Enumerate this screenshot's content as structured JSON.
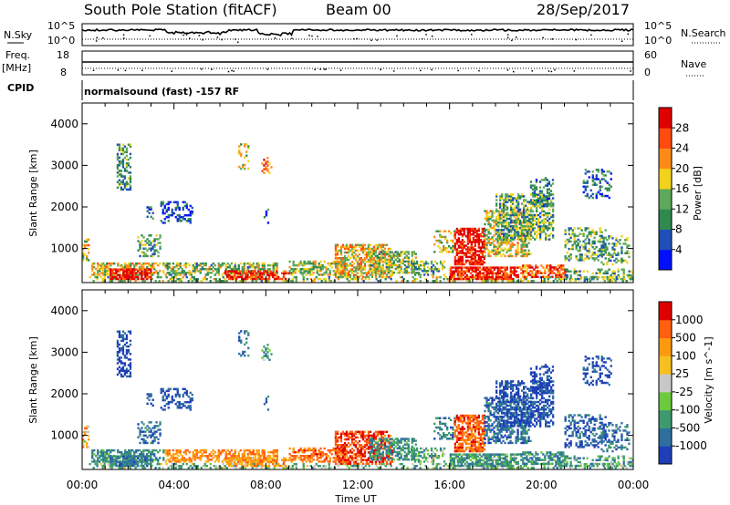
{
  "header": {
    "station": "South Pole Station (fitACF)",
    "beam": "Beam 00",
    "date": "28/Sep/2017"
  },
  "strip_panels": {
    "nsky_label": "N.Sky",
    "nsky_ticks": [
      "10^5",
      "10^0"
    ],
    "nsearch_label": "N.Search",
    "nsearch_ticks": [
      "10^5",
      "10^0"
    ],
    "freq_label": "Freq.",
    "freq_unit": "[MHz]",
    "freq_ticks": [
      "18",
      "8"
    ],
    "nave_label": "Nave",
    "nave_ticks": [
      "60",
      "0"
    ],
    "cpid_label": "CPID",
    "cpid_text": "normalsound (fast) -157 RF"
  },
  "chart_data": [
    {
      "type": "heatmap",
      "name": "power",
      "ylabel": "Slant Range [km]",
      "xlabel": "Time UT",
      "x_ticks": [
        "00:00",
        "04:00",
        "08:00",
        "12:00",
        "16:00",
        "20:00",
        "00:00"
      ],
      "x_range_hours": [
        0,
        24
      ],
      "y_ticks": [
        1000,
        2000,
        3000,
        4000
      ],
      "ylim": [
        180,
        4500
      ],
      "colorbar": {
        "label": "Power [dB]",
        "ticks": [
          4,
          8,
          12,
          16,
          20,
          24,
          28
        ],
        "range": [
          0,
          32
        ],
        "colors": [
          "#0010ff",
          "#1f4fb8",
          "#2e8a4e",
          "#5ea85a",
          "#f2d21a",
          "#ff8a1a",
          "#ff4a10",
          "#e00000"
        ]
      }
    },
    {
      "type": "heatmap",
      "name": "velocity",
      "ylabel": "Slant Range [km]",
      "xlabel": "Time UT",
      "x_ticks": [
        "00:00",
        "04:00",
        "08:00",
        "12:00",
        "16:00",
        "20:00",
        "00:00"
      ],
      "x_range_hours": [
        0,
        24
      ],
      "y_ticks": [
        1000,
        2000,
        3000,
        4000
      ],
      "ylim": [
        180,
        4500
      ],
      "colorbar": {
        "label": "Velocity [m s^-1]",
        "ticks": [
          "1000",
          "500",
          "100",
          "25",
          "-25",
          "-100",
          "-500",
          "-1000"
        ],
        "colors": [
          "#1f3fb8",
          "#2e6fa0",
          "#3e9a6e",
          "#6ccb3c",
          "#c8c8c8",
          "#f5c020",
          "#ff9a10",
          "#ff6010",
          "#e00000"
        ]
      }
    }
  ]
}
